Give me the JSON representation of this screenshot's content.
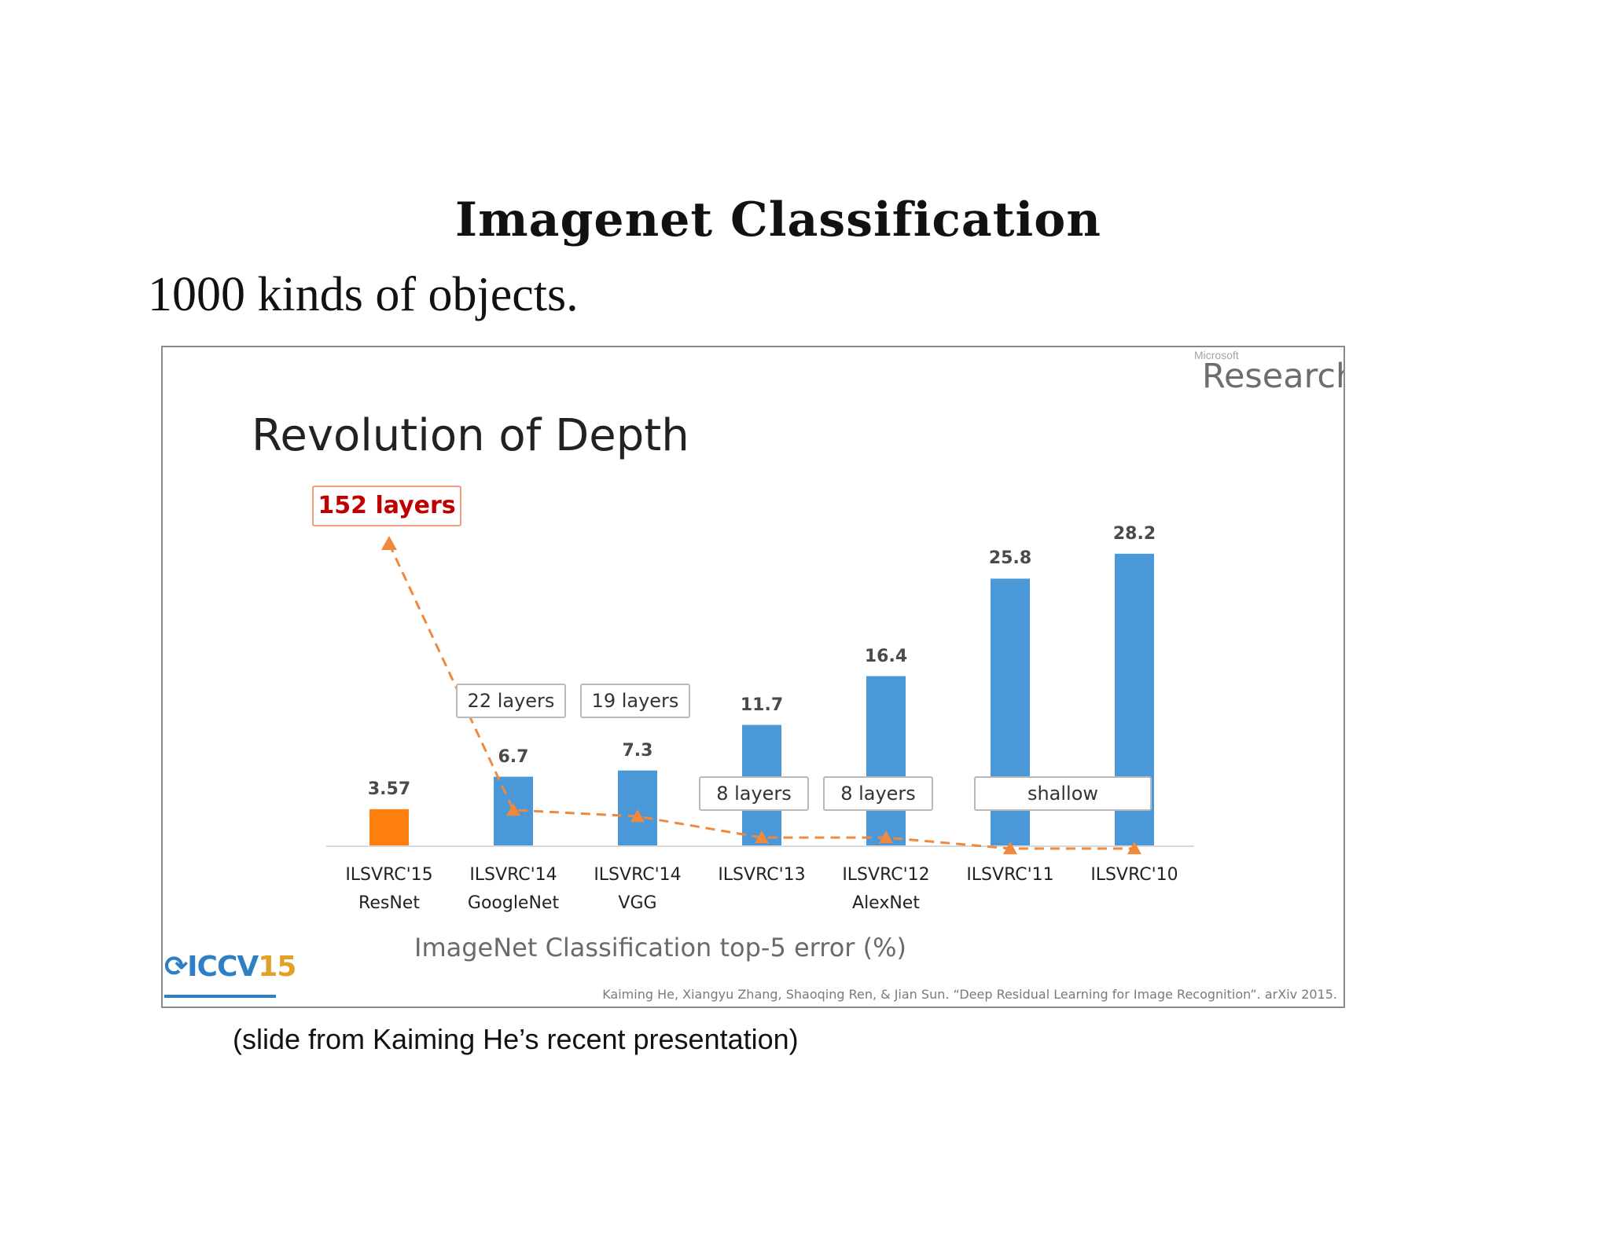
{
  "document": {
    "heading": "Imagenet Classification",
    "subtitle": "1000 kinds of objects.",
    "caption": "(slide from Kaiming He’s recent presentation)"
  },
  "slide": {
    "brand_small": "Microsoft",
    "brand_big": "Research",
    "title": "Revolution of Depth",
    "logo": "ICCV15",
    "citation": "Kaiming He, Xiangyu Zhang, Shaoqing Ren, & Jian Sun. “Deep Residual Learning for Image Recognition”. arXiv 2015.",
    "callouts": {
      "main": "152 layers",
      "googlenet": "22 layers",
      "vgg": "19 layers",
      "ilsvrc13": "8 layers",
      "alexnet": "8 layers",
      "shallow": "shallow"
    }
  },
  "chart_data": {
    "type": "bar",
    "title": "Revolution of Depth",
    "xlabel": "ImageNet Classification top-5 error (%)",
    "ylabel": "",
    "categories": [
      "ILSVRC'15",
      "ILSVRC'14",
      "ILSVRC'14",
      "ILSVRC'13",
      "ILSVRC'12",
      "ILSVRC'11",
      "ILSVRC'10"
    ],
    "sublabels": [
      "ResNet",
      "GoogleNet",
      "VGG",
      "",
      "AlexNet",
      "",
      ""
    ],
    "values": [
      3.57,
      6.7,
      7.3,
      11.7,
      16.4,
      25.8,
      28.2
    ],
    "value_labels": [
      "3.57",
      "6.7",
      "7.3",
      "11.7",
      "16.4",
      "25.8",
      "28.2"
    ],
    "layers": [
      152,
      22,
      19,
      8,
      8,
      null,
      null
    ],
    "bar_colors": [
      "#ff7f0e",
      "#4a98d8",
      "#4a98d8",
      "#4a98d8",
      "#4a98d8",
      "#4a98d8",
      "#4a98d8"
    ],
    "trend_color": "#f0883e",
    "grid": false,
    "legend": "none"
  }
}
